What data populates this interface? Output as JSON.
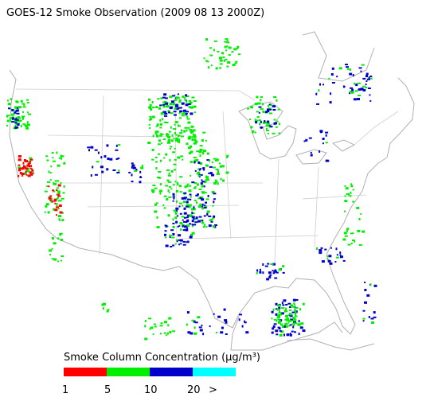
{
  "title": "GOES-12 Smoke Observation (2009 08 13  2000Z)",
  "legend": {
    "title": "Smoke Column Concentration (μg/m³)",
    "colors": [
      "#ff0000",
      "#00ee00",
      "#0000cc",
      "#00ffff"
    ],
    "tick_labels": [
      "1",
      "5",
      "10",
      "20",
      ">"
    ]
  }
}
